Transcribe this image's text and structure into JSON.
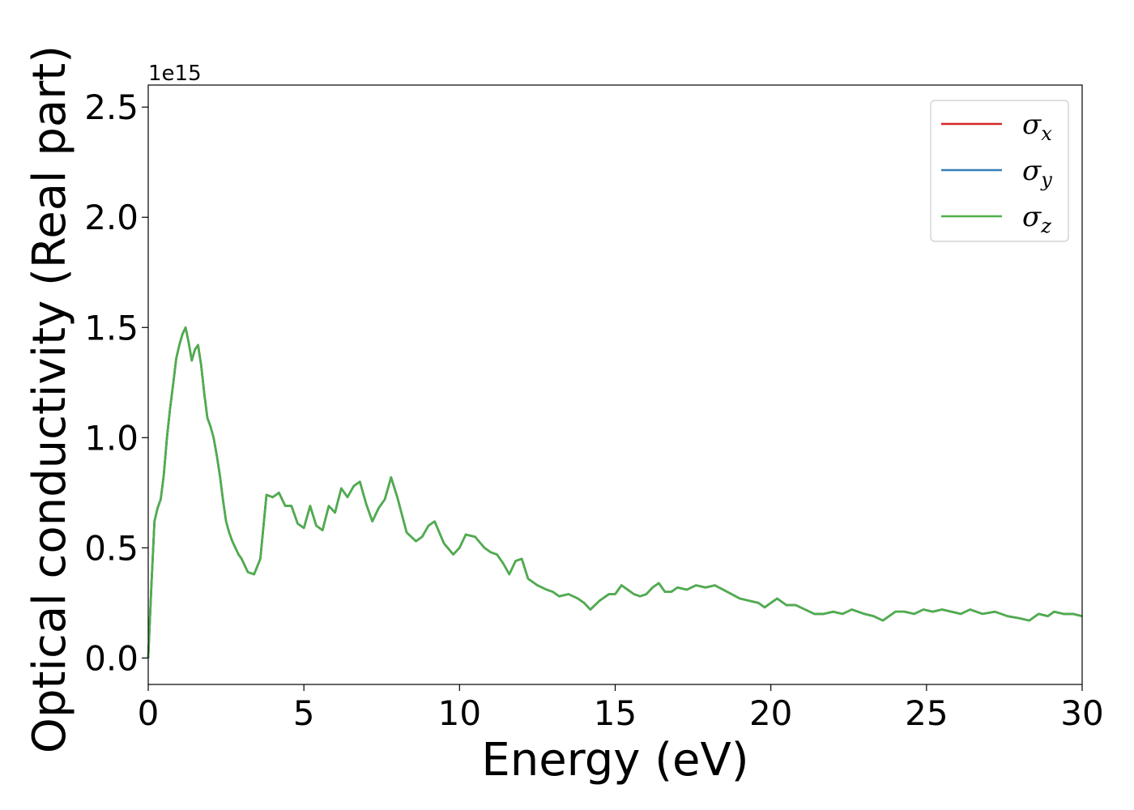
{
  "chart_data": {
    "type": "line",
    "title": "",
    "xlabel": "Energy (eV)",
    "ylabel": "Optical conductivity (Real part)",
    "y_offset_text": "1e15",
    "y_scale": 1000000000000000.0,
    "xlim": [
      0,
      30
    ],
    "ylim": [
      -0.12,
      2.6
    ],
    "xticks": [
      0,
      5,
      10,
      15,
      20,
      25,
      30
    ],
    "xtick_labels": [
      "0",
      "5",
      "10",
      "15",
      "20",
      "25",
      "30"
    ],
    "yticks": [
      0.0,
      0.5,
      1.0,
      1.5,
      2.0,
      2.5
    ],
    "ytick_labels": [
      "0.0",
      "0.5",
      "1.0",
      "1.5",
      "2.0",
      "2.5"
    ],
    "grid": false,
    "legend_position": "top-right",
    "x": [
      0,
      0.1,
      0.2,
      0.3,
      0.4,
      0.5,
      0.6,
      0.7,
      0.8,
      0.9,
      1.0,
      1.1,
      1.2,
      1.3,
      1.4,
      1.5,
      1.6,
      1.7,
      1.8,
      1.9,
      2.0,
      2.1,
      2.2,
      2.3,
      2.4,
      2.5,
      2.6,
      2.7,
      2.8,
      2.9,
      3.0,
      3.2,
      3.4,
      3.6,
      3.8,
      4.0,
      4.2,
      4.4,
      4.6,
      4.8,
      5.0,
      5.2,
      5.4,
      5.6,
      5.8,
      6.0,
      6.2,
      6.4,
      6.6,
      6.8,
      7.0,
      7.2,
      7.4,
      7.6,
      7.8,
      8.0,
      8.3,
      8.6,
      8.8,
      9.0,
      9.2,
      9.5,
      9.8,
      10.0,
      10.2,
      10.5,
      10.8,
      11.0,
      11.2,
      11.4,
      11.6,
      11.8,
      12.0,
      12.2,
      12.5,
      12.8,
      13.0,
      13.2,
      13.5,
      13.8,
      14.0,
      14.2,
      14.5,
      14.8,
      15.0,
      15.2,
      15.4,
      15.6,
      15.8,
      16.0,
      16.2,
      16.4,
      16.6,
      16.8,
      17.0,
      17.3,
      17.6,
      17.9,
      18.2,
      18.6,
      19.0,
      19.3,
      19.6,
      19.8,
      20.0,
      20.2,
      20.5,
      20.8,
      21.1,
      21.4,
      21.7,
      22.0,
      22.3,
      22.6,
      23.0,
      23.3,
      23.6,
      24.0,
      24.3,
      24.6,
      24.9,
      25.2,
      25.5,
      25.8,
      26.1,
      26.4,
      26.8,
      27.2,
      27.6,
      28.0,
      28.3,
      28.6,
      28.9,
      29.1,
      29.4,
      29.7,
      30.0
    ],
    "series": [
      {
        "name": "σ_x",
        "color": "#d62728",
        "values": [
          0.0,
          0.32,
          0.62,
          0.68,
          0.72,
          0.83,
          1.0,
          1.13,
          1.24,
          1.36,
          1.42,
          1.47,
          1.5,
          1.43,
          1.35,
          1.4,
          1.42,
          1.33,
          1.2,
          1.09,
          1.05,
          1.0,
          0.92,
          0.83,
          0.72,
          0.62,
          0.57,
          0.53,
          0.5,
          0.47,
          0.45,
          0.39,
          0.38,
          0.45,
          0.74,
          0.73,
          0.75,
          0.69,
          0.69,
          0.61,
          0.59,
          0.69,
          0.6,
          0.58,
          0.69,
          0.66,
          0.77,
          0.73,
          0.78,
          0.8,
          0.7,
          0.62,
          0.68,
          0.72,
          0.82,
          0.73,
          0.57,
          0.53,
          0.55,
          0.6,
          0.62,
          0.52,
          0.47,
          0.5,
          0.56,
          0.55,
          0.5,
          0.48,
          0.47,
          0.43,
          0.38,
          0.44,
          0.45,
          0.36,
          0.33,
          0.31,
          0.3,
          0.28,
          0.29,
          0.27,
          0.25,
          0.22,
          0.26,
          0.29,
          0.29,
          0.33,
          0.31,
          0.29,
          0.28,
          0.29,
          0.32,
          0.34,
          0.3,
          0.3,
          0.32,
          0.31,
          0.33,
          0.32,
          0.33,
          0.3,
          0.27,
          0.26,
          0.25,
          0.23,
          0.25,
          0.27,
          0.24,
          0.24,
          0.22,
          0.2,
          0.2,
          0.21,
          0.2,
          0.22,
          0.2,
          0.19,
          0.17,
          0.21,
          0.21,
          0.2,
          0.22,
          0.21,
          0.22,
          0.21,
          0.2,
          0.22,
          0.2,
          0.21,
          0.19,
          0.18,
          0.17,
          0.2,
          0.19,
          0.21,
          0.2,
          0.2,
          0.19
        ]
      },
      {
        "name": "σ_y",
        "color": "#377eb8",
        "values": [
          0.0,
          0.32,
          0.62,
          0.68,
          0.72,
          0.83,
          1.0,
          1.13,
          1.24,
          1.36,
          1.42,
          1.47,
          1.5,
          1.43,
          1.35,
          1.4,
          1.42,
          1.33,
          1.2,
          1.09,
          1.05,
          1.0,
          0.92,
          0.83,
          0.72,
          0.62,
          0.57,
          0.53,
          0.5,
          0.47,
          0.45,
          0.39,
          0.38,
          0.45,
          0.74,
          0.73,
          0.75,
          0.69,
          0.69,
          0.61,
          0.59,
          0.69,
          0.6,
          0.58,
          0.69,
          0.66,
          0.77,
          0.73,
          0.78,
          0.8,
          0.7,
          0.62,
          0.68,
          0.72,
          0.82,
          0.73,
          0.57,
          0.53,
          0.55,
          0.6,
          0.62,
          0.52,
          0.47,
          0.5,
          0.56,
          0.55,
          0.5,
          0.48,
          0.47,
          0.43,
          0.38,
          0.44,
          0.45,
          0.36,
          0.33,
          0.31,
          0.3,
          0.28,
          0.29,
          0.27,
          0.25,
          0.22,
          0.26,
          0.29,
          0.29,
          0.33,
          0.31,
          0.29,
          0.28,
          0.29,
          0.32,
          0.34,
          0.3,
          0.3,
          0.32,
          0.31,
          0.33,
          0.32,
          0.33,
          0.3,
          0.27,
          0.26,
          0.25,
          0.23,
          0.25,
          0.27,
          0.24,
          0.24,
          0.22,
          0.2,
          0.2,
          0.21,
          0.2,
          0.22,
          0.2,
          0.19,
          0.17,
          0.21,
          0.21,
          0.2,
          0.22,
          0.21,
          0.22,
          0.21,
          0.2,
          0.22,
          0.2,
          0.21,
          0.19,
          0.18,
          0.17,
          0.2,
          0.19,
          0.21,
          0.2,
          0.2,
          0.19
        ]
      },
      {
        "name": "σ_z",
        "color": "#4daf4a",
        "values": [
          0.0,
          0.32,
          0.62,
          0.68,
          0.72,
          0.83,
          1.0,
          1.13,
          1.24,
          1.36,
          1.42,
          1.47,
          1.5,
          1.43,
          1.35,
          1.4,
          1.42,
          1.33,
          1.2,
          1.09,
          1.05,
          1.0,
          0.92,
          0.83,
          0.72,
          0.62,
          0.57,
          0.53,
          0.5,
          0.47,
          0.45,
          0.39,
          0.38,
          0.45,
          0.74,
          0.73,
          0.75,
          0.69,
          0.69,
          0.61,
          0.59,
          0.69,
          0.6,
          0.58,
          0.69,
          0.66,
          0.77,
          0.73,
          0.78,
          0.8,
          0.7,
          0.62,
          0.68,
          0.72,
          0.82,
          0.73,
          0.57,
          0.53,
          0.55,
          0.6,
          0.62,
          0.52,
          0.47,
          0.5,
          0.56,
          0.55,
          0.5,
          0.48,
          0.47,
          0.43,
          0.38,
          0.44,
          0.45,
          0.36,
          0.33,
          0.31,
          0.3,
          0.28,
          0.29,
          0.27,
          0.25,
          0.22,
          0.26,
          0.29,
          0.29,
          0.33,
          0.31,
          0.29,
          0.28,
          0.29,
          0.32,
          0.34,
          0.3,
          0.3,
          0.32,
          0.31,
          0.33,
          0.32,
          0.33,
          0.3,
          0.27,
          0.26,
          0.25,
          0.23,
          0.25,
          0.27,
          0.24,
          0.24,
          0.22,
          0.2,
          0.2,
          0.21,
          0.2,
          0.22,
          0.2,
          0.19,
          0.17,
          0.21,
          0.21,
          0.2,
          0.22,
          0.21,
          0.22,
          0.21,
          0.2,
          0.22,
          0.2,
          0.21,
          0.19,
          0.18,
          0.17,
          0.2,
          0.19,
          0.21,
          0.2,
          0.2,
          0.19
        ]
      }
    ],
    "legend": [
      {
        "symbol": "σ",
        "subscript": "x",
        "color": "#d62728"
      },
      {
        "symbol": "σ",
        "subscript": "y",
        "color": "#377eb8"
      },
      {
        "symbol": "σ",
        "subscript": "z",
        "color": "#4daf4a"
      }
    ]
  }
}
